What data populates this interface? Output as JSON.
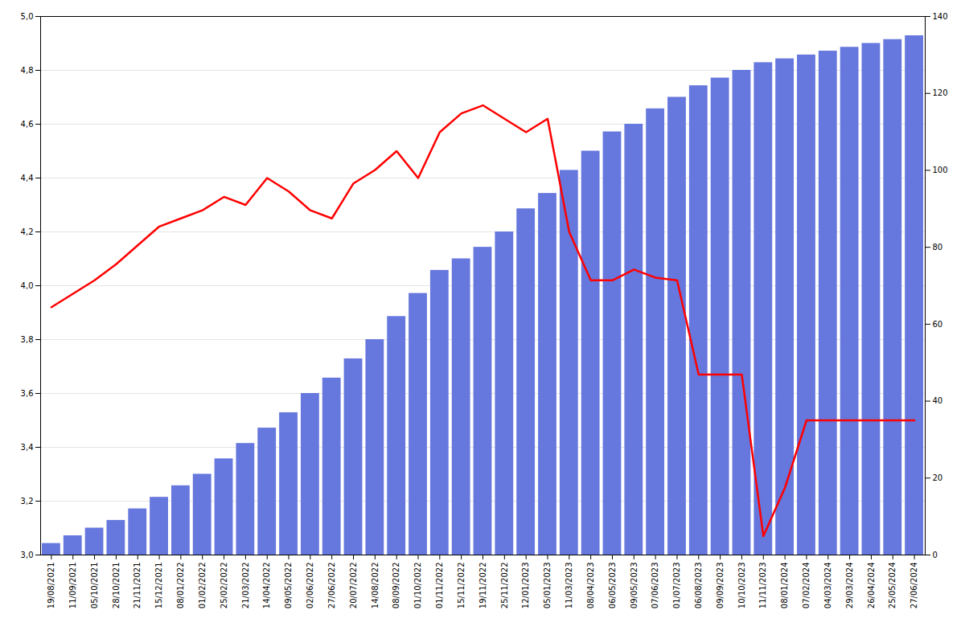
{
  "chart_data": {
    "type": "bar",
    "categories": [
      "19/08/2021",
      "11/09/2021",
      "05/10/2021",
      "28/10/2021",
      "21/11/2021",
      "15/12/2021",
      "08/01/2022",
      "01/02/2022",
      "25/02/2022",
      "21/03/2022",
      "14/04/2022",
      "09/05/2022",
      "02/06/2022",
      "27/06/2022",
      "20/07/2022",
      "14/08/2022",
      "08/09/2022",
      "01/10/2022",
      "01/11/2022",
      "15/11/2022",
      "19/11/2022",
      "25/11/2022",
      "12/01/2023",
      "05/01/2023",
      "11/03/2023",
      "08/04/2023",
      "06/05/2023",
      "09/05/2023",
      "07/06/2023",
      "01/07/2023",
      "06/08/2023",
      "09/09/2023",
      "10/10/2023",
      "11/11/2023",
      "08/01/2024",
      "07/02/2024",
      "04/03/2024",
      "29/03/2024",
      "26/04/2024",
      "25/05/2024",
      "27/06/2024"
    ],
    "series": [
      {
        "type": "bar",
        "axis": "y2",
        "color": "#6677dd",
        "values": [
          3,
          5,
          7,
          9,
          12,
          15,
          18,
          21,
          25,
          29,
          33,
          37,
          42,
          46,
          51,
          56,
          62,
          68,
          74,
          77,
          80,
          84,
          90,
          94,
          100,
          105,
          110,
          112,
          116,
          119,
          122,
          124,
          126,
          128,
          129,
          130,
          131,
          132,
          133,
          134,
          135
        ]
      },
      {
        "type": "line",
        "color": "#ff0000",
        "values": [
          3.92,
          3.97,
          4.02,
          4.08,
          4.15,
          4.22,
          4.25,
          4.28,
          4.33,
          4.3,
          4.4,
          4.35,
          4.28,
          4.25,
          4.38,
          4.43,
          4.5,
          4.4,
          4.57,
          4.64,
          4.67,
          4.62,
          4.57,
          4.62,
          4.2,
          4.02,
          4.02,
          4.06,
          4.03,
          4.02,
          3.67,
          3.67,
          3.67,
          3.07,
          3.25,
          3.5,
          3.5,
          3.5,
          3.5,
          3.5,
          3.5
        ]
      }
    ],
    "ylim": [
      3.0,
      5.0
    ],
    "yticks": [
      {
        "value": 3.0,
        "label": "3,0"
      },
      {
        "value": 3.2,
        "label": "3,2"
      },
      {
        "value": 3.4,
        "label": "3,4"
      },
      {
        "value": 3.6,
        "label": "3,6"
      },
      {
        "value": 3.8,
        "label": "3,8"
      },
      {
        "value": 4.0,
        "label": "4,0"
      },
      {
        "value": 4.2,
        "label": "4,2"
      },
      {
        "value": 4.4,
        "label": "4,4"
      },
      {
        "value": 4.6,
        "label": "4,6"
      },
      {
        "value": 4.8,
        "label": "4,8"
      },
      {
        "value": 5.0,
        "label": "5,0"
      }
    ],
    "y2lim": [
      0,
      140
    ],
    "y2ticks": [
      0,
      20,
      40,
      60,
      80,
      100,
      120,
      140
    ],
    "grid": true
  }
}
